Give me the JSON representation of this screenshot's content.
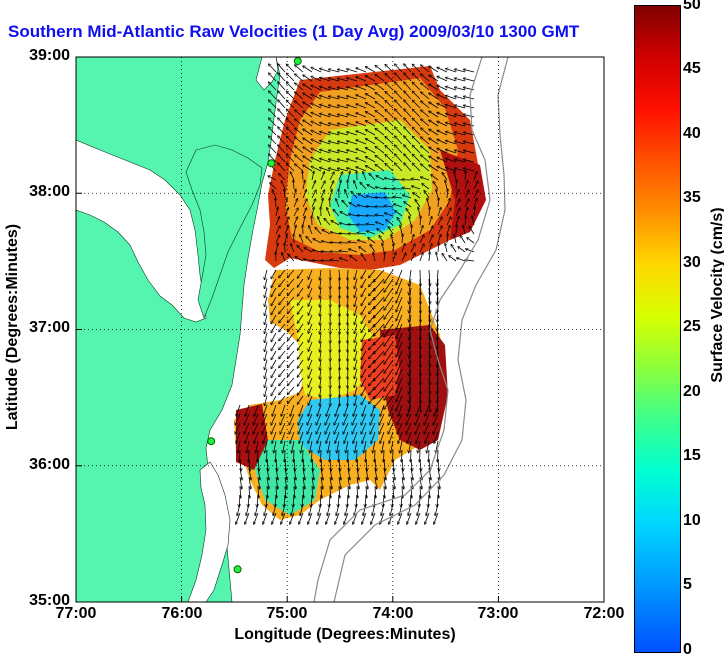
{
  "title": "Southern Mid-Atlantic Raw Velocities (1 Day Avg) 2009/03/10 1300 GMT",
  "map": {
    "lon_range_deg": [
      -77,
      -72
    ],
    "lat_range_deg": [
      35,
      39
    ],
    "land_color": "#55f5b0",
    "grid": true
  },
  "axes": {
    "xlabel": "Longitude (Degrees:Minutes)",
    "ylabel": "Latitude (Degrees:Minutes)",
    "xticks": [
      {
        "value": -77,
        "label": "77:00"
      },
      {
        "value": -76,
        "label": "76:00"
      },
      {
        "value": -75,
        "label": "75:00"
      },
      {
        "value": -74,
        "label": "74:00"
      },
      {
        "value": -73,
        "label": "73:00"
      },
      {
        "value": -72,
        "label": "72:00"
      }
    ],
    "yticks": [
      {
        "value": 39,
        "label": "39:00"
      },
      {
        "value": 38,
        "label": "38:00"
      },
      {
        "value": 37,
        "label": "37:00"
      },
      {
        "value": 36,
        "label": "36:00"
      },
      {
        "value": 35,
        "label": "35:00"
      }
    ]
  },
  "colorbar": {
    "label": "Surface Velocity (cm/s)",
    "range": [
      0,
      50
    ],
    "ticks": [
      "50",
      "45",
      "40",
      "35",
      "30",
      "25",
      "20",
      "15",
      "10",
      "5",
      "0"
    ]
  },
  "stations": [
    {
      "lon": -74.9,
      "lat": 38.97
    },
    {
      "lon": -75.15,
      "lat": 38.22
    },
    {
      "lon": -75.72,
      "lat": 36.18
    },
    {
      "lon": -75.47,
      "lat": 35.24
    }
  ]
}
